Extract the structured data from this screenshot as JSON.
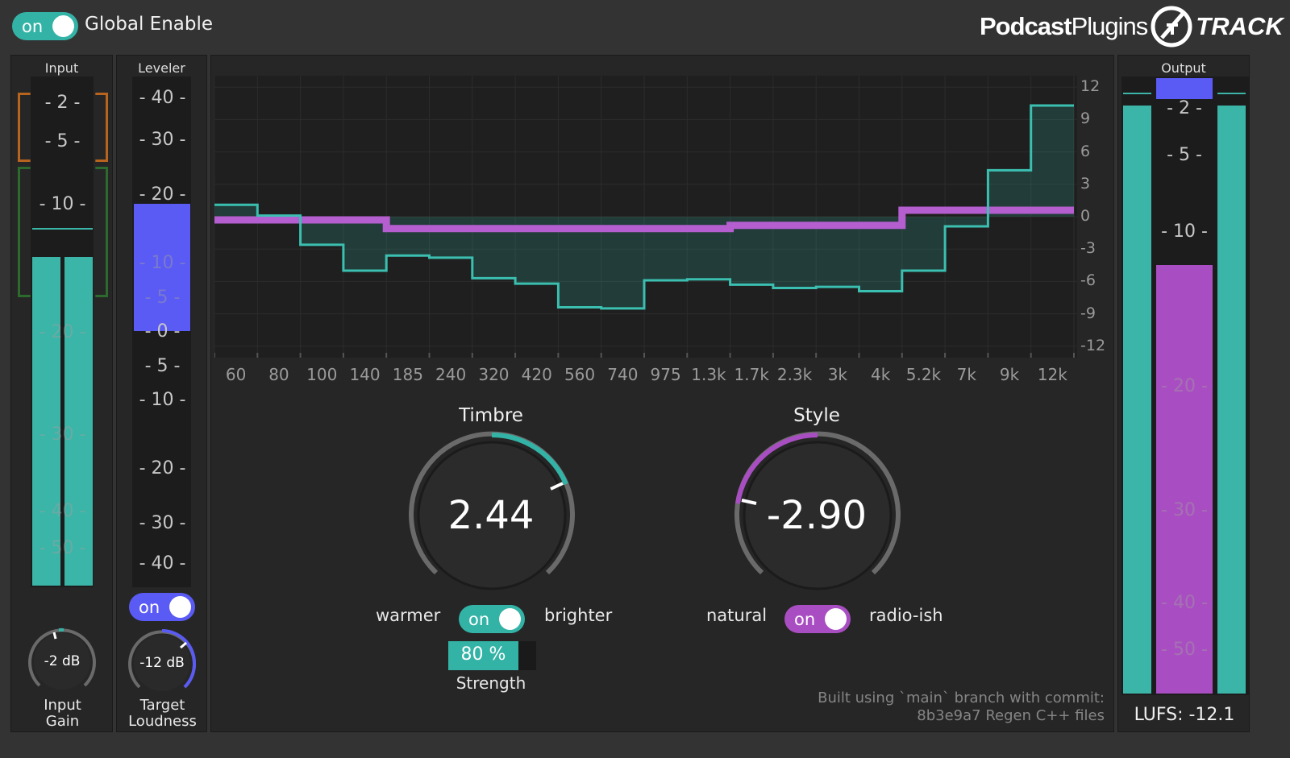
{
  "header": {
    "global_toggle_state": "on",
    "global_label": "Global Enable",
    "brand_word1": "Podcast",
    "brand_word2": "Plugins",
    "product": "TRACK"
  },
  "input": {
    "title": "Input",
    "scale": [
      "- 2 -",
      "- 5 -",
      "- 10 -",
      "- 20 -",
      "- 30 -",
      "- 40 -",
      "- 50 -"
    ],
    "knob_value": "-2 dB",
    "knob_label_1": "Input",
    "knob_label_2": "Gain",
    "meter_level_fraction": 0.64
  },
  "leveler": {
    "title": "Leveler",
    "scale": [
      "- 40 -",
      "- 30 -",
      "- 20 -",
      "- 10 -",
      "- 5 -",
      "- 0 -",
      "- 5 -",
      "- 10 -",
      "- 20 -",
      "- 30 -",
      "- 40 -"
    ],
    "toggle_state": "on",
    "knob_value": "-12 dB",
    "knob_label_1": "Target",
    "knob_label_2": "Loudness"
  },
  "eq": {
    "db_labels": [
      "12",
      "9",
      "6",
      "3",
      "0",
      "-3",
      "-6",
      "-9",
      "-12"
    ],
    "freq_labels": [
      "60",
      "80",
      "100",
      "140",
      "185",
      "240",
      "320",
      "420",
      "560",
      "740",
      "975",
      "1.3k",
      "1.7k",
      "2.3k",
      "3k",
      "4k",
      "5.2k",
      "7k",
      "9k",
      "12k"
    ],
    "teal_curve_db": [
      1.1,
      0.1,
      -2.6,
      -5.0,
      -3.6,
      -3.8,
      -5.7,
      -6.2,
      -8.4,
      -8.5,
      -5.9,
      -5.8,
      -6.3,
      -6.6,
      -6.5,
      -6.9,
      -5.0,
      -0.9,
      4.3,
      10.3
    ],
    "purple_curve_db": [
      -0.3,
      -0.3,
      -0.3,
      -0.3,
      -1.1,
      -1.1,
      -1.1,
      -1.1,
      -1.1,
      -1.1,
      -1.1,
      -1.1,
      -0.8,
      -0.8,
      -0.8,
      -0.8,
      0.6,
      0.6,
      0.6,
      0.6
    ]
  },
  "timbre": {
    "title": "Timbre",
    "value": "2.44",
    "left_label": "warmer",
    "right_label": "brighter",
    "toggle_state": "on",
    "strength_value": "80 %",
    "strength_fraction": 0.8,
    "strength_label": "Strength",
    "accent": "#33b3a6"
  },
  "style": {
    "title": "Style",
    "value": "-2.90",
    "left_label": "natural",
    "right_label": "radio-ish",
    "toggle_state": "on",
    "accent": "#a94ec2"
  },
  "build_info": {
    "line1": "Built using `main` branch with commit:",
    "line2": "8b3e9a7 Regen C++ files"
  },
  "output": {
    "title": "Output",
    "scale": [
      "- 2 -",
      "- 5 -",
      "- 10 -",
      "- 20 -",
      "- 30 -",
      "- 40 -",
      "- 50 -"
    ],
    "lufs_text": "LUFS: -12.1"
  }
}
